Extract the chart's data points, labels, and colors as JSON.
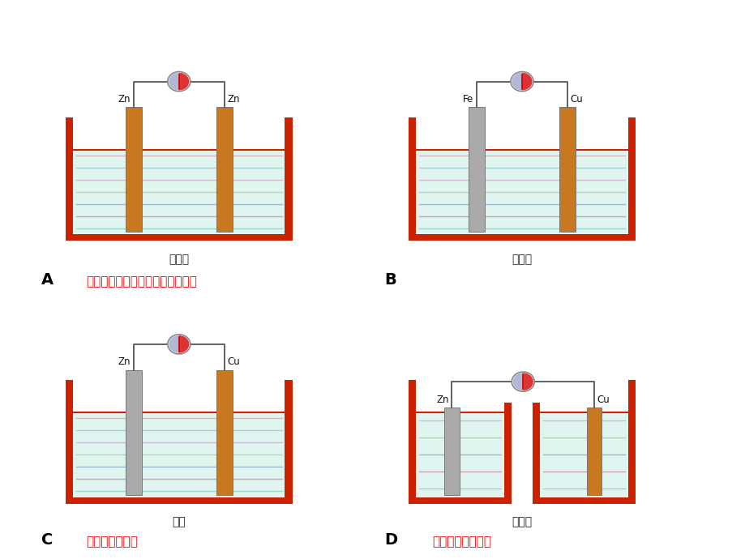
{
  "bg_color": "#ffffff",
  "panels": [
    {
      "id": "A",
      "label": "A",
      "note": "没有两个活泼性不同的导体作电极",
      "liquid_label": "稀硫酸",
      "left_label": "Zn",
      "left_color": "#c87820",
      "right_label": "Zn",
      "right_color": "#c87820",
      "split": false
    },
    {
      "id": "B",
      "label": "B",
      "note": "",
      "liquid_label": "稀硫酸",
      "left_label": "Fe",
      "left_color": "#aaaaaa",
      "right_label": "Cu",
      "right_color": "#c87820",
      "split": false
    },
    {
      "id": "C",
      "label": "C",
      "note": "没有电解质溶液",
      "liquid_label": "酒精",
      "left_label": "Zn",
      "left_color": "#aaaaaa",
      "right_label": "Cu",
      "right_color": "#c87820",
      "split": false
    },
    {
      "id": "D",
      "label": "D",
      "note": "没有形成闭合回路",
      "liquid_label": "稀硫酸",
      "left_label": "Zn",
      "left_color": "#aaaaaa",
      "right_label": "Cu",
      "right_color": "#c87820",
      "split": true
    }
  ],
  "line_colors": [
    "#88cccc",
    "#cc88aa",
    "#88aacc",
    "#aaccaa",
    "#ccaacc",
    "#88cccc",
    "#ccaaaa"
  ],
  "wall_color": "#cc2200",
  "liquid_bg": "#e0f5f0"
}
